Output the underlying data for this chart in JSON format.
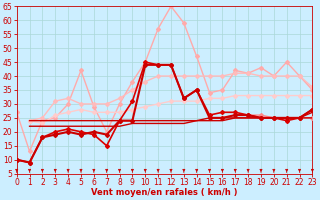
{
  "xlabel": "Vent moyen/en rafales ( km/h )",
  "xlim": [
    0,
    23
  ],
  "ylim": [
    5,
    65
  ],
  "yticks": [
    5,
    10,
    15,
    20,
    25,
    30,
    35,
    40,
    45,
    50,
    55,
    60,
    65
  ],
  "xticks": [
    0,
    1,
    2,
    3,
    4,
    5,
    6,
    7,
    8,
    9,
    10,
    11,
    12,
    13,
    14,
    15,
    16,
    17,
    18,
    19,
    20,
    21,
    22,
    23
  ],
  "bg_color": "#cceeff",
  "grid_color": "#aad8d8",
  "series": [
    {
      "x": [
        0,
        1,
        2,
        3,
        4,
        5,
        6,
        7,
        8,
        9,
        10,
        11,
        12,
        13,
        14,
        15,
        16,
        17,
        18,
        19,
        20,
        21,
        22,
        23
      ],
      "y": [
        27,
        13,
        24,
        25,
        30,
        42,
        29,
        20,
        30,
        38,
        45,
        57,
        65,
        59,
        47,
        34,
        35,
        42,
        41,
        43,
        40,
        45,
        40,
        35
      ],
      "color": "#ffaaaa",
      "lw": 1.0,
      "marker": "D",
      "ms": 2.0,
      "zorder": 2
    },
    {
      "x": [
        0,
        1,
        2,
        3,
        4,
        5,
        6,
        7,
        8,
        9,
        10,
        11,
        12,
        13,
        14,
        15,
        16,
        17,
        18,
        19,
        20,
        21,
        22,
        23
      ],
      "y": [
        null,
        24,
        25,
        31,
        32,
        30,
        30,
        30,
        32,
        35,
        38,
        40,
        40,
        40,
        40,
        40,
        40,
        41,
        41,
        40,
        40,
        40,
        40,
        36
      ],
      "color": "#ffbbbb",
      "lw": 1.0,
      "marker": "D",
      "ms": 2.0,
      "zorder": 2
    },
    {
      "x": [
        0,
        1,
        2,
        3,
        4,
        5,
        6,
        7,
        8,
        9,
        10,
        11,
        12,
        13,
        14,
        15,
        16,
        17,
        18,
        19,
        20,
        21,
        22,
        23
      ],
      "y": [
        null,
        24,
        23,
        26,
        27,
        28,
        27,
        27,
        27,
        28,
        29,
        30,
        31,
        31,
        31,
        32,
        32,
        33,
        33,
        33,
        33,
        33,
        33,
        33
      ],
      "color": "#ffcccc",
      "lw": 1.0,
      "marker": "D",
      "ms": 2.0,
      "zorder": 2
    },
    {
      "x": [
        0,
        1,
        2,
        3,
        4,
        5,
        6,
        7,
        8,
        9,
        10,
        11,
        12,
        13,
        14,
        15,
        16,
        17,
        18,
        19,
        20,
        21,
        22,
        23
      ],
      "y": [
        10,
        9,
        18,
        19,
        20,
        19,
        20,
        19,
        24,
        24,
        44,
        44,
        44,
        32,
        35,
        25,
        25,
        26,
        26,
        25,
        25,
        25,
        25,
        28
      ],
      "color": "#cc0000",
      "lw": 1.5,
      "marker": "D",
      "ms": 2.0,
      "zorder": 6
    },
    {
      "x": [
        0,
        1,
        2,
        3,
        4,
        5,
        6,
        7,
        8,
        9,
        10,
        11,
        12,
        13,
        14,
        15,
        16,
        17,
        18,
        19,
        20,
        21,
        22,
        23
      ],
      "y": [
        10,
        9,
        18,
        20,
        21,
        20,
        19,
        15,
        24,
        31,
        45,
        44,
        44,
        32,
        35,
        26,
        27,
        27,
        26,
        25,
        25,
        24,
        25,
        28
      ],
      "color": "#dd0000",
      "lw": 1.2,
      "marker": "D",
      "ms": 2.0,
      "zorder": 5
    },
    {
      "x": [
        0,
        1,
        2,
        3,
        4,
        5,
        6,
        7,
        8,
        9,
        10,
        11,
        12,
        13,
        14,
        15,
        16,
        17,
        18,
        19,
        20,
        21,
        22,
        23
      ],
      "y": [
        null,
        22,
        22,
        22,
        22,
        22,
        22,
        22,
        22,
        23,
        23,
        23,
        23,
        23,
        24,
        24,
        24,
        25,
        25,
        25,
        25,
        25,
        25,
        27
      ],
      "color": "#cc0000",
      "lw": 1.0,
      "marker": null,
      "ms": 0,
      "zorder": 4
    },
    {
      "x": [
        0,
        1,
        2,
        3,
        4,
        5,
        6,
        7,
        8,
        9,
        10,
        11,
        12,
        13,
        14,
        15,
        16,
        17,
        18,
        19,
        20,
        21,
        22,
        23
      ],
      "y": [
        null,
        24,
        24,
        24,
        24,
        24,
        24,
        24,
        24,
        24,
        24,
        24,
        24,
        24,
        24,
        25,
        25,
        25,
        25,
        25,
        25,
        25,
        25,
        25
      ],
      "color": "#cc0000",
      "lw": 1.0,
      "marker": null,
      "ms": 0,
      "zorder": 4
    },
    {
      "x": [
        0,
        1,
        2,
        3,
        4,
        5,
        6,
        7,
        8,
        9,
        10,
        11,
        12,
        13,
        14,
        15,
        16,
        17,
        18,
        19,
        20,
        21,
        22,
        23
      ],
      "y": [
        null,
        null,
        null,
        null,
        null,
        null,
        null,
        null,
        null,
        null,
        null,
        null,
        null,
        null,
        null,
        null,
        25,
        26,
        26,
        26,
        25,
        25,
        25,
        25
      ],
      "color": "#ff8888",
      "lw": 1.0,
      "marker": "D",
      "ms": 2.0,
      "zorder": 3
    }
  ],
  "tick_color": "#cc0000",
  "tick_label_color": "#cc0000",
  "xlabel_color": "#cc0000",
  "axis_label_fontsize": 6,
  "tick_fontsize": 5.5
}
